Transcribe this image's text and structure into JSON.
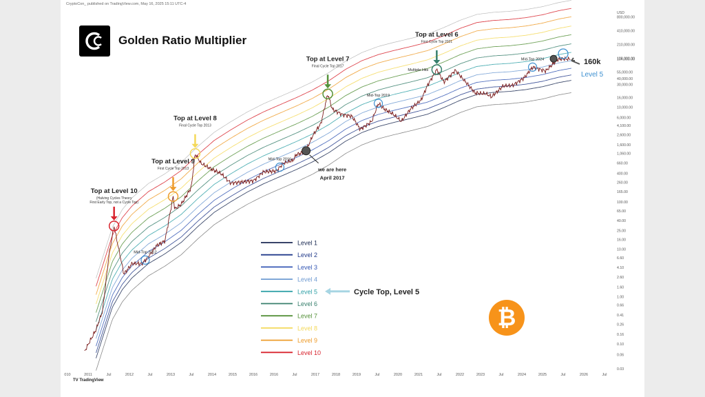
{
  "header": {
    "credit": "CryptoCon_ published on TradingView.com, May 16, 2025 15:11 UTC-4",
    "title": "Golden Ratio Multiplier"
  },
  "footer": {
    "tradingview": "TradingView"
  },
  "badge": {
    "symbol": "₿",
    "color": "#f7931a"
  },
  "chart_data": {
    "type": "line",
    "title": "Golden Ratio Multiplier",
    "y_scale": "log",
    "ylim": [
      0.03,
      1000000
    ],
    "x_ticks": [
      "010",
      "2011",
      "Jul",
      "2012",
      "Jul",
      "2013",
      "Jul",
      "2014",
      "2015",
      "2016",
      "2016",
      "Jul",
      "2017",
      "2018",
      "2019",
      "Jul",
      "2020",
      "2021",
      "Jul",
      "2022",
      "2023",
      "Jul",
      "2024",
      "2025",
      "Jul",
      "2026",
      "Jul"
    ],
    "y_ticks": [
      {
        "label": "USD",
        "value": 1000000
      },
      {
        "label": "800,000.00",
        "value": 800000
      },
      {
        "label": "410,000.00",
        "value": 410000
      },
      {
        "label": "210,000.00",
        "value": 210000
      },
      {
        "label": "108,000.00",
        "value": 108000
      },
      {
        "label": "104,000.00",
        "value": 104000
      },
      {
        "label": "55,000.00",
        "value": 55000
      },
      {
        "label": "40,000.00",
        "value": 40000
      },
      {
        "label": "30,000.00",
        "value": 30000
      },
      {
        "label": "16,000.00",
        "value": 16000
      },
      {
        "label": "10,000.00",
        "value": 10000
      },
      {
        "label": "6,000.00",
        "value": 6000
      },
      {
        "label": "4,100.00",
        "value": 4100
      },
      {
        "label": "2,600.00",
        "value": 2600
      },
      {
        "label": "1,600.00",
        "value": 1600
      },
      {
        "label": "1,060.00",
        "value": 1060
      },
      {
        "label": "660.00",
        "value": 660
      },
      {
        "label": "400.00",
        "value": 400
      },
      {
        "label": "260.00",
        "value": 260
      },
      {
        "label": "165.00",
        "value": 165
      },
      {
        "label": "100.00",
        "value": 100
      },
      {
        "label": "65.00",
        "value": 65
      },
      {
        "label": "40.00",
        "value": 40
      },
      {
        "label": "25.00",
        "value": 25
      },
      {
        "label": "16.00",
        "value": 16
      },
      {
        "label": "10.00",
        "value": 10
      },
      {
        "label": "6.60",
        "value": 6.6
      },
      {
        "label": "4.10",
        "value": 4.1
      },
      {
        "label": "2.60",
        "value": 2.6
      },
      {
        "label": "1.60",
        "value": 1.6
      },
      {
        "label": "1.00",
        "value": 1
      },
      {
        "label": "0.66",
        "value": 0.66
      },
      {
        "label": "0.41",
        "value": 0.41
      },
      {
        "label": "0.26",
        "value": 0.26
      },
      {
        "label": "0.16",
        "value": 0.16
      },
      {
        "label": "0.10",
        "value": 0.1
      },
      {
        "label": "0.06",
        "value": 0.06
      },
      {
        "label": "0.03",
        "value": 0.03
      }
    ],
    "price": {
      "t": [
        2010.55,
        2010.9,
        2011.1,
        2011.3,
        2011.45,
        2011.55,
        2011.75,
        2012.0,
        2012.3,
        2012.5,
        2012.75,
        2013.0,
        2013.25,
        2013.3,
        2013.5,
        2013.8,
        2013.92,
        2014.1,
        2014.4,
        2014.7,
        2015.0,
        2015.3,
        2015.7,
        2016.0,
        2016.4,
        2016.6,
        2016.9,
        2017.0,
        2017.2,
        2017.3,
        2017.5,
        2017.75,
        2017.96,
        2018.1,
        2018.4,
        2018.7,
        2018.95,
        2019.3,
        2019.5,
        2019.7,
        2019.95,
        2020.2,
        2020.5,
        2020.8,
        2021.0,
        2021.28,
        2021.5,
        2021.85,
        2022.1,
        2022.45,
        2022.8,
        2022.95,
        2023.3,
        2023.6,
        2023.95,
        2024.2,
        2024.6,
        2024.95,
        2025.05,
        2025.35
      ],
      "v": [
        0.07,
        0.2,
        0.5,
        8,
        31,
        14,
        3,
        5,
        5,
        7,
        12,
        15,
        130,
        70,
        90,
        200,
        1050,
        650,
        500,
        400,
        250,
        260,
        280,
        430,
        450,
        650,
        750,
        1000,
        1100,
        1200,
        2500,
        4500,
        19000,
        9000,
        7000,
        6400,
        3400,
        5000,
        12000,
        9000,
        7200,
        5000,
        9500,
        14000,
        29000,
        62000,
        34000,
        60000,
        38000,
        20000,
        19000,
        16500,
        28000,
        29000,
        42000,
        70000,
        58000,
        100000,
        105000,
        104000
      ]
    },
    "bands": {
      "t": [
        2010.9,
        2011.4,
        2011.7,
        2012.0,
        2012.5,
        2013.0,
        2013.5,
        2014.0,
        2014.5,
        2015.0,
        2015.5,
        2016.0,
        2016.5,
        2017.0,
        2017.5,
        2018.0,
        2018.5,
        2019.0,
        2019.5,
        2020.0,
        2020.5,
        2021.0,
        2021.5,
        2022.0,
        2022.5,
        2023.0,
        2023.5,
        2024.0,
        2024.5,
        2025.0,
        2025.4
      ],
      "base": [
        0.05,
        0.6,
        1.4,
        2.5,
        5,
        8,
        14,
        30,
        60,
        100,
        160,
        240,
        340,
        480,
        700,
        1100,
        1900,
        2900,
        3900,
        4800,
        5800,
        7100,
        9800,
        14000,
        18500,
        20500,
        21500,
        23500,
        27000,
        33000,
        37000
      ],
      "multipliers": [
        1,
        1.3,
        1.8,
        2.6,
        3.9,
        5.9,
        9.2,
        14,
        22,
        33,
        49
      ]
    },
    "series": [
      {
        "name": "Level 1",
        "color": "#1b2a52"
      },
      {
        "name": "Level 2",
        "color": "#223a8a"
      },
      {
        "name": "Level 3",
        "color": "#3457b4"
      },
      {
        "name": "Level 4",
        "color": "#6f9bd2"
      },
      {
        "name": "Level 5",
        "color": "#33a2a8"
      },
      {
        "name": "Level 6",
        "color": "#377f6c"
      },
      {
        "name": "Level 7",
        "color": "#55913a"
      },
      {
        "name": "Level 8",
        "color": "#f4d95a"
      },
      {
        "name": "Level 9",
        "color": "#ee9c2b"
      },
      {
        "name": "Level 10",
        "color": "#d8242e"
      }
    ],
    "annotations": [
      {
        "title": "Top at Level 10",
        "sub1": "(Halving Cycles Theory",
        "sub2": "First Early Top, not a Cycle Top)",
        "t": 2011.45,
        "v": 31,
        "color": "#d8242e"
      },
      {
        "title": "Top at Level 9",
        "sub1": "First Cycle Top 2013",
        "t": 2013.25,
        "v": 130,
        "color": "#ee9c2b"
      },
      {
        "title": "Top at Level 8",
        "sub1": "Final Cycle Top 2013",
        "t": 2013.92,
        "v": 1050,
        "color": "#f4d95a"
      },
      {
        "title": "Top at Level 7",
        "sub1": "Final Cycle Top 2017",
        "t": 2017.96,
        "v": 19000,
        "color": "#55913a"
      },
      {
        "title": "Top at Level 6",
        "sub1": "First Cycle Top 2021",
        "t": 2021.28,
        "v": 62000,
        "color": "#377f6c"
      }
    ],
    "mid_tops": [
      {
        "label": "Mid-Top 2012",
        "t": 2012.4
      },
      {
        "label": "Mid-Top 2016",
        "t": 2016.5
      },
      {
        "label": "Mid-Top 2019",
        "t": 2019.5
      },
      {
        "label": "Mid-Top 2024",
        "t": 2024.2
      }
    ],
    "notes": {
      "multiple_hits": "Multiple Hits",
      "we_are_here": "we are here",
      "april": "April 2017",
      "target": "160k",
      "target_level": "Level 5",
      "cycle_top": "Cycle Top, Level 5"
    }
  }
}
